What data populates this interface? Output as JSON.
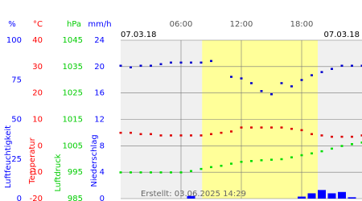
{
  "chart_data": {
    "type": "multi-axis",
    "date_left": "07.03.18",
    "date_right": "07.03.18",
    "created": "Erstellt: 03.06.2025 14:29",
    "xlim": [
      0,
      24
    ],
    "xticks": [
      {
        "value": 6,
        "label": "06:00"
      },
      {
        "value": 12,
        "label": "12:00"
      },
      {
        "value": 18,
        "label": "18:00"
      }
    ],
    "daylight": [
      8.1,
      19.6
    ],
    "grid": true,
    "y_axes": [
      {
        "unit": "%",
        "label": "Luftfeuchtigkeit",
        "color": "#0000ff",
        "ylim": [
          0,
          100
        ],
        "yticks": [
          0,
          25,
          50,
          75,
          100
        ]
      },
      {
        "unit": "°C",
        "label": "Temperatur",
        "color": "#ff0000",
        "ylim": [
          -20,
          40
        ],
        "yticks": [
          -20,
          -10,
          0,
          10,
          20,
          30,
          40
        ]
      },
      {
        "unit": "hPa",
        "label": "Luftdruck",
        "color": "#00cc00",
        "ylim": [
          985,
          1045
        ],
        "yticks": [
          985,
          995,
          1005,
          1015,
          1025,
          1035,
          1045
        ]
      },
      {
        "unit": "mm/h",
        "label": "Niederschlag",
        "color": "#0000ff",
        "ylim": [
          0,
          24
        ],
        "yticks": [
          0,
          4,
          8,
          12,
          16,
          20,
          24
        ]
      }
    ],
    "x": [
      0,
      1,
      2,
      3,
      4,
      5,
      6,
      7,
      8,
      9,
      10,
      11,
      12,
      13,
      14,
      15,
      16,
      17,
      18,
      19,
      20,
      21,
      22,
      23,
      24
    ],
    "series": [
      {
        "name": "Luftfeuchtigkeit",
        "axis": 0,
        "style": "points",
        "color": "#0000cc",
        "values": [
          84,
          83,
          84,
          84,
          85,
          86,
          86,
          86,
          86,
          87,
          null,
          77,
          76,
          73,
          68,
          66,
          73,
          71,
          75,
          78,
          80,
          82,
          84,
          84,
          84
        ]
      },
      {
        "name": "Temperatur",
        "axis": 1,
        "style": "points",
        "color": "#dd0000",
        "values": [
          5,
          5,
          4.5,
          4.5,
          4,
          4,
          4,
          4,
          4,
          4.5,
          5,
          5.5,
          7,
          7,
          7,
          7,
          7,
          6.5,
          6,
          4.5,
          4,
          3.5,
          3.5,
          3.5,
          4
        ]
      },
      {
        "name": "Luftdruck",
        "axis": 2,
        "style": "points",
        "color": "#00dd00",
        "values": [
          995,
          995,
          995,
          995,
          995,
          995,
          995,
          995.5,
          996.3,
          997,
          997.5,
          998.3,
          999,
          999.3,
          999.6,
          999.8,
          1000,
          1000.7,
          1001.5,
          1002.2,
          1003,
          1004,
          1005,
          1005.7,
          1006.3
        ]
      },
      {
        "name": "Niederschlag",
        "axis": 3,
        "style": "bars",
        "color": "#0000ff",
        "values": [
          0,
          0,
          0,
          0,
          0,
          0,
          0,
          0.4,
          0,
          0,
          0,
          0,
          0,
          0,
          0,
          0,
          0,
          0,
          0.3,
          0.8,
          1.3,
          0.8,
          1.0,
          0.2,
          0
        ]
      }
    ]
  }
}
